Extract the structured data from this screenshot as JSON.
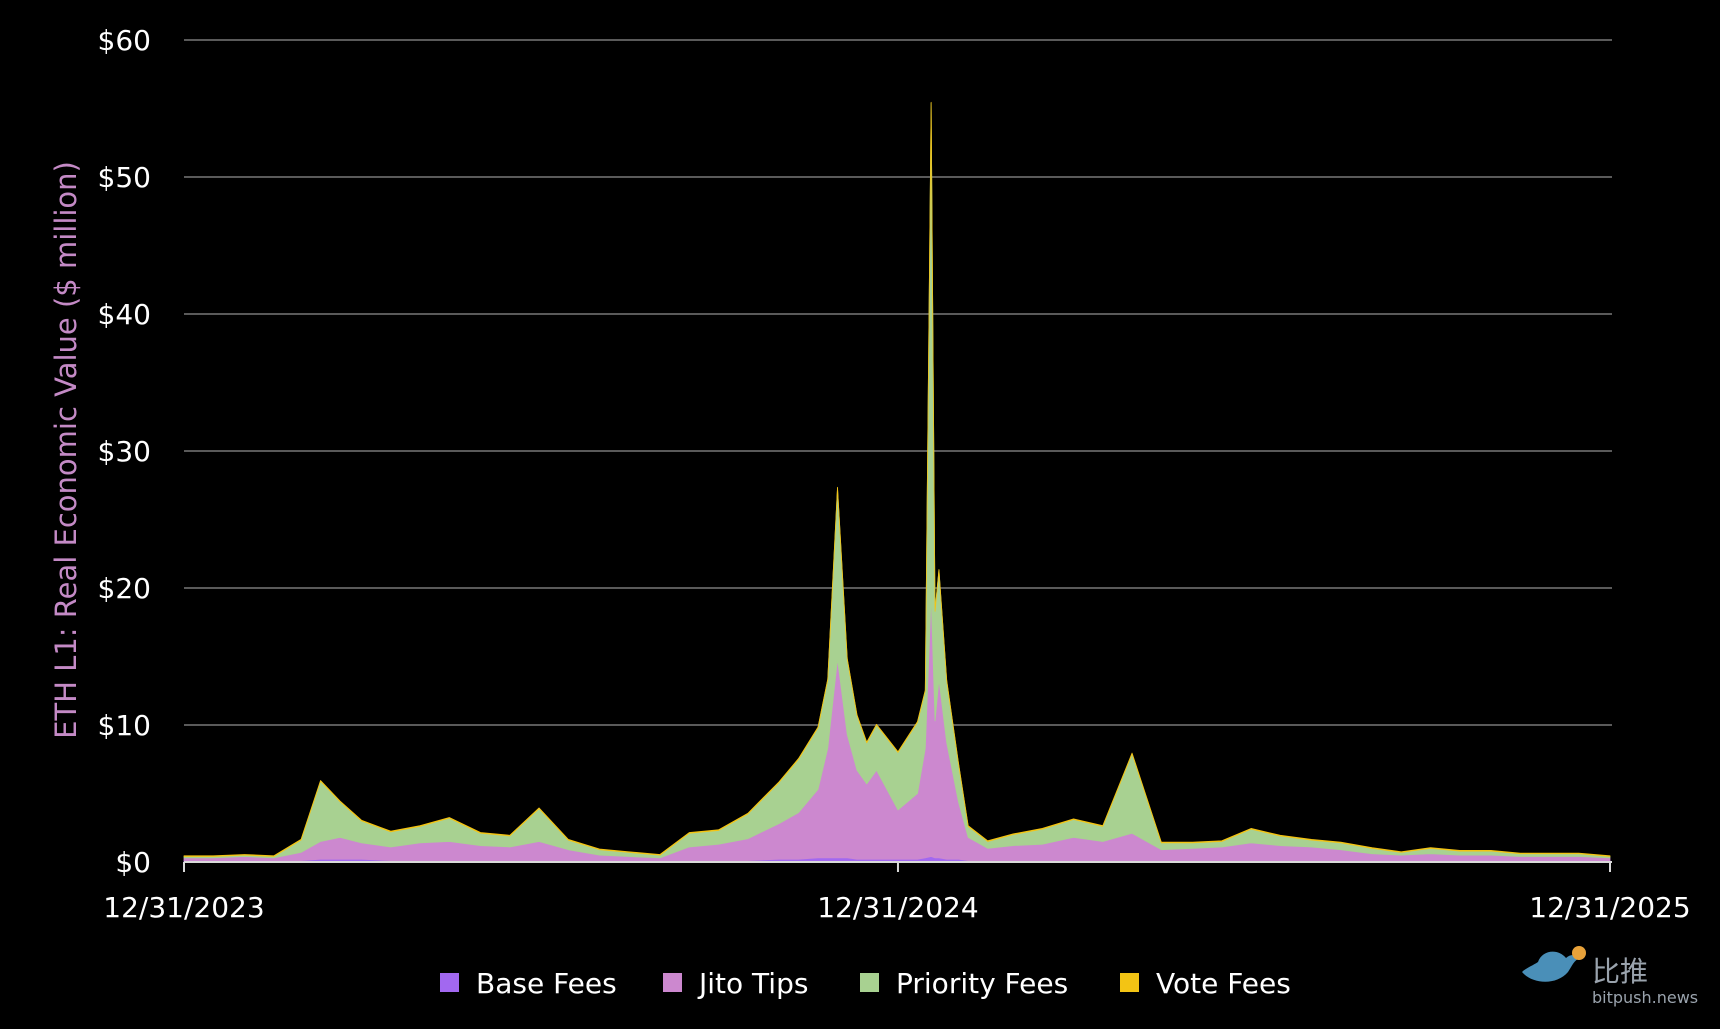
{
  "chart_data": {
    "type": "area",
    "stacked": true,
    "title": "",
    "ylabel": "ETH L1: Real Economic Value ($ million)",
    "xlabel": "",
    "ylim": [
      0,
      60
    ],
    "yticks": [
      0,
      10,
      20,
      30,
      40,
      50,
      60
    ],
    "ytick_labels": [
      "$0",
      "$10",
      "$20",
      "$30",
      "$40",
      "$50",
      "$60"
    ],
    "xlim": [
      "2023-12-31",
      "2025-12-31"
    ],
    "xticks": [
      "2023-12-31",
      "2024-12-31",
      "2025-12-31"
    ],
    "xtick_labels": [
      "12/31/2023",
      "12/31/2024",
      "12/31/2025"
    ],
    "grid": true,
    "legend_position": "bottom",
    "x": [
      "2023-12-31",
      "2024-01-15",
      "2024-01-31",
      "2024-02-15",
      "2024-02-29",
      "2024-03-10",
      "2024-03-20",
      "2024-03-31",
      "2024-04-15",
      "2024-04-30",
      "2024-05-15",
      "2024-05-31",
      "2024-06-15",
      "2024-06-30",
      "2024-07-15",
      "2024-07-31",
      "2024-08-15",
      "2024-08-31",
      "2024-09-15",
      "2024-09-30",
      "2024-10-15",
      "2024-10-31",
      "2024-11-10",
      "2024-11-20",
      "2024-11-25",
      "2024-11-30",
      "2024-12-05",
      "2024-12-10",
      "2024-12-15",
      "2024-12-20",
      "2024-12-31",
      "2025-01-10",
      "2025-01-14",
      "2025-01-17",
      "2025-01-19",
      "2025-01-21",
      "2025-01-25",
      "2025-01-31",
      "2025-02-05",
      "2025-02-15",
      "2025-02-28",
      "2025-03-15",
      "2025-03-31",
      "2025-04-15",
      "2025-04-30",
      "2025-05-15",
      "2025-05-31",
      "2025-06-15",
      "2025-06-30",
      "2025-07-15",
      "2025-07-31",
      "2025-08-15",
      "2025-08-31",
      "2025-09-15",
      "2025-09-30",
      "2025-10-15",
      "2025-10-31",
      "2025-11-15",
      "2025-11-30",
      "2025-12-15",
      "2025-12-31"
    ],
    "series": [
      {
        "name": "Base Fees",
        "color": "#a268f0",
        "values": [
          0.1,
          0.1,
          0.1,
          0.1,
          0.1,
          0.2,
          0.2,
          0.2,
          0.1,
          0.1,
          0.1,
          0.1,
          0.1,
          0.1,
          0.1,
          0.1,
          0.1,
          0.1,
          0.1,
          0.1,
          0.1,
          0.2,
          0.2,
          0.3,
          0.3,
          0.3,
          0.3,
          0.2,
          0.2,
          0.2,
          0.2,
          0.2,
          0.3,
          0.4,
          0.3,
          0.3,
          0.2,
          0.2,
          0.1,
          0.1,
          0.1,
          0.1,
          0.1,
          0.1,
          0.1,
          0.1,
          0.1,
          0.1,
          0.1,
          0.1,
          0.1,
          0.1,
          0.1,
          0.1,
          0.1,
          0.1,
          0.1,
          0.1,
          0.1,
          0.1,
          0.1
        ]
      },
      {
        "name": "Jito Tips",
        "color": "#cc88cf",
        "values": [
          0.2,
          0.2,
          0.3,
          0.2,
          0.6,
          1.3,
          1.6,
          1.2,
          1.0,
          1.3,
          1.4,
          1.1,
          1.0,
          1.4,
          0.8,
          0.4,
          0.3,
          0.2,
          1.0,
          1.2,
          1.6,
          2.6,
          3.4,
          5.0,
          8.0,
          14.5,
          9.0,
          6.5,
          5.5,
          6.5,
          3.6,
          4.8,
          8.0,
          19.0,
          10.0,
          13.0,
          8.5,
          4.2,
          1.7,
          0.9,
          1.1,
          1.2,
          1.7,
          1.4,
          2.0,
          0.8,
          0.9,
          1.0,
          1.3,
          1.1,
          1.0,
          0.8,
          0.5,
          0.4,
          0.5,
          0.4,
          0.4,
          0.3,
          0.3,
          0.3,
          0.2
        ]
      },
      {
        "name": "Priority Fees",
        "color": "#a8d191",
        "values": [
          0.1,
          0.1,
          0.1,
          0.1,
          0.9,
          4.4,
          2.6,
          1.6,
          1.1,
          1.2,
          1.7,
          0.9,
          0.8,
          2.4,
          0.7,
          0.4,
          0.3,
          0.2,
          1.0,
          1.0,
          1.8,
          3.0,
          3.9,
          4.5,
          5.0,
          12.5,
          5.5,
          4.0,
          3.0,
          3.3,
          4.2,
          5.2,
          4.2,
          36.0,
          8.0,
          8.0,
          4.5,
          2.8,
          0.8,
          0.5,
          0.8,
          1.1,
          1.3,
          1.1,
          5.8,
          0.5,
          0.4,
          0.4,
          1.0,
          0.7,
          0.5,
          0.5,
          0.4,
          0.2,
          0.4,
          0.3,
          0.3,
          0.2,
          0.2,
          0.2,
          0.1
        ]
      },
      {
        "name": "Vote Fees",
        "color": "#f3c414",
        "values": [
          0.05,
          0.05,
          0.05,
          0.05,
          0.05,
          0.05,
          0.05,
          0.05,
          0.05,
          0.05,
          0.05,
          0.05,
          0.05,
          0.05,
          0.05,
          0.05,
          0.05,
          0.05,
          0.05,
          0.05,
          0.05,
          0.05,
          0.05,
          0.05,
          0.05,
          0.05,
          0.05,
          0.05,
          0.05,
          0.05,
          0.05,
          0.05,
          0.05,
          0.05,
          0.05,
          0.05,
          0.05,
          0.05,
          0.05,
          0.05,
          0.05,
          0.05,
          0.05,
          0.05,
          0.05,
          0.05,
          0.05,
          0.05,
          0.05,
          0.05,
          0.05,
          0.05,
          0.05,
          0.05,
          0.05,
          0.05,
          0.05,
          0.05,
          0.05,
          0.05,
          0.05
        ]
      }
    ]
  },
  "watermark": {
    "brand": "比推",
    "domain": "bitpush.news"
  }
}
